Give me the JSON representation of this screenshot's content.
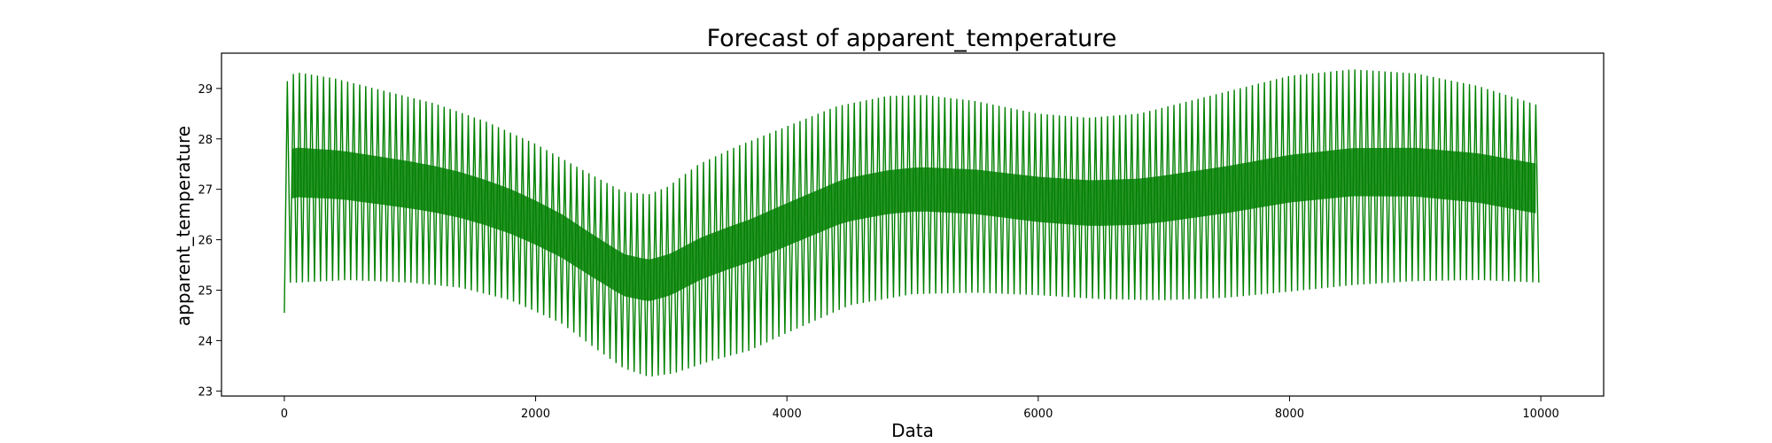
{
  "chart_data": {
    "type": "line",
    "title": "Forecast of apparent_temperature",
    "xlabel": "Data",
    "ylabel": "apparent_temperature",
    "xlim": [
      -500,
      10500
    ],
    "ylim": [
      22.9,
      29.7
    ],
    "xticks": [
      0,
      2000,
      4000,
      6000,
      8000,
      10000
    ],
    "yticks": [
      23,
      24,
      25,
      26,
      27,
      28,
      29
    ],
    "grid": false,
    "legend": "none",
    "series": [
      {
        "color": "#008000",
        "x_range": [
          0,
          10000
        ],
        "oscillation_period": 48,
        "upper_envelope": [
          [
            0,
            25.4
          ],
          [
            10,
            29.05
          ],
          [
            40,
            29.25
          ],
          [
            100,
            29.32
          ],
          [
            400,
            29.2
          ],
          [
            800,
            28.95
          ],
          [
            1200,
            28.7
          ],
          [
            1600,
            28.35
          ],
          [
            2000,
            27.9
          ],
          [
            2400,
            27.35
          ],
          [
            2700,
            26.95
          ],
          [
            2900,
            26.9
          ],
          [
            3050,
            27.05
          ],
          [
            3300,
            27.5
          ],
          [
            3600,
            27.85
          ],
          [
            4000,
            28.25
          ],
          [
            4400,
            28.65
          ],
          [
            4800,
            28.85
          ],
          [
            5100,
            28.87
          ],
          [
            5500,
            28.75
          ],
          [
            6000,
            28.5
          ],
          [
            6400,
            28.42
          ],
          [
            6800,
            28.5
          ],
          [
            7200,
            28.75
          ],
          [
            7600,
            29.0
          ],
          [
            8000,
            29.25
          ],
          [
            8500,
            29.38
          ],
          [
            9000,
            29.3
          ],
          [
            9500,
            29.05
          ],
          [
            10000,
            28.65
          ]
        ],
        "lower_envelope": [
          [
            0,
            24.55
          ],
          [
            10,
            25.0
          ],
          [
            40,
            25.15
          ],
          [
            100,
            25.15
          ],
          [
            500,
            25.2
          ],
          [
            1000,
            25.15
          ],
          [
            1400,
            25.05
          ],
          [
            1800,
            24.8
          ],
          [
            2200,
            24.35
          ],
          [
            2500,
            23.8
          ],
          [
            2700,
            23.45
          ],
          [
            2900,
            23.28
          ],
          [
            3100,
            23.35
          ],
          [
            3400,
            23.6
          ],
          [
            3700,
            23.8
          ],
          [
            4000,
            24.15
          ],
          [
            4500,
            24.7
          ],
          [
            5000,
            24.92
          ],
          [
            5500,
            24.95
          ],
          [
            6000,
            24.9
          ],
          [
            6500,
            24.82
          ],
          [
            7000,
            24.8
          ],
          [
            7500,
            24.85
          ],
          [
            8000,
            24.97
          ],
          [
            8500,
            25.1
          ],
          [
            9000,
            25.18
          ],
          [
            9500,
            25.2
          ],
          [
            10000,
            25.15
          ]
        ],
        "dense_band_offset": [
          [
            0,
            0.9
          ],
          [
            2900,
            0.75
          ],
          [
            10000,
            0.9
          ]
        ]
      }
    ]
  }
}
